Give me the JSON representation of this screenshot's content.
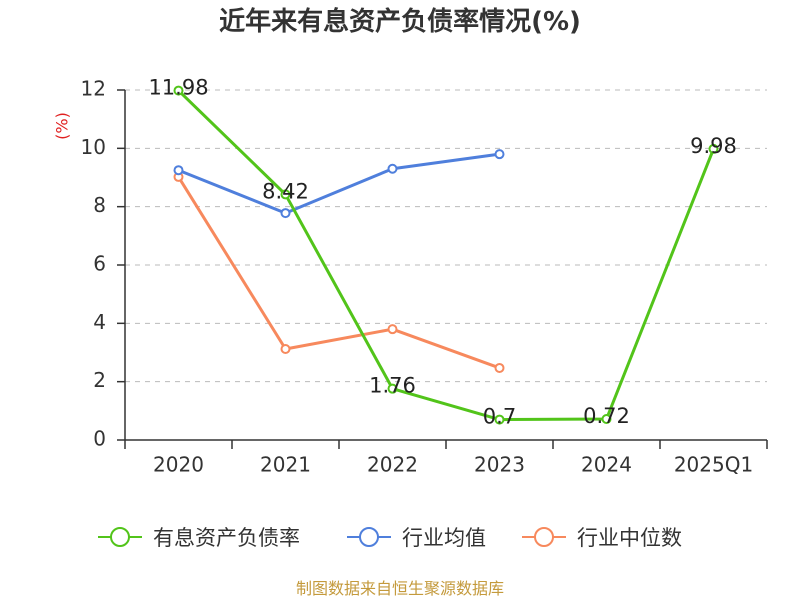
{
  "chart_data": {
    "type": "line",
    "title": "近年来有息资产负债率情况(%)",
    "xlabel": "",
    "ylabel": "(%)",
    "categories": [
      "2020",
      "2021",
      "2022",
      "2023",
      "2024",
      "2025Q1"
    ],
    "ylim": [
      0,
      12
    ],
    "yticks": [
      0,
      2,
      4,
      6,
      8,
      10,
      12
    ],
    "grid": true,
    "legend": "bottom",
    "series": [
      {
        "name": "有息资产负债率",
        "color": "#52c41a",
        "data_labels": true,
        "values": [
          11.98,
          8.42,
          1.76,
          0.7,
          0.72,
          9.98
        ]
      },
      {
        "name": "行业均值",
        "color": "#4f7fdc",
        "data_labels": false,
        "values": [
          9.25,
          7.78,
          9.3,
          9.8,
          null,
          null
        ]
      },
      {
        "name": "行业中位数",
        "color": "#f7895d",
        "data_labels": false,
        "values": [
          9.02,
          3.12,
          3.8,
          2.47,
          null,
          null
        ]
      }
    ]
  },
  "source": "制图数据来自恒生聚源数据库",
  "colors": {
    "title": "#333333",
    "axis": "#333333",
    "grid": "#bbbbbb",
    "ylabel": "#e02020",
    "data_label": "#222222",
    "source": "#c49a3c"
  }
}
